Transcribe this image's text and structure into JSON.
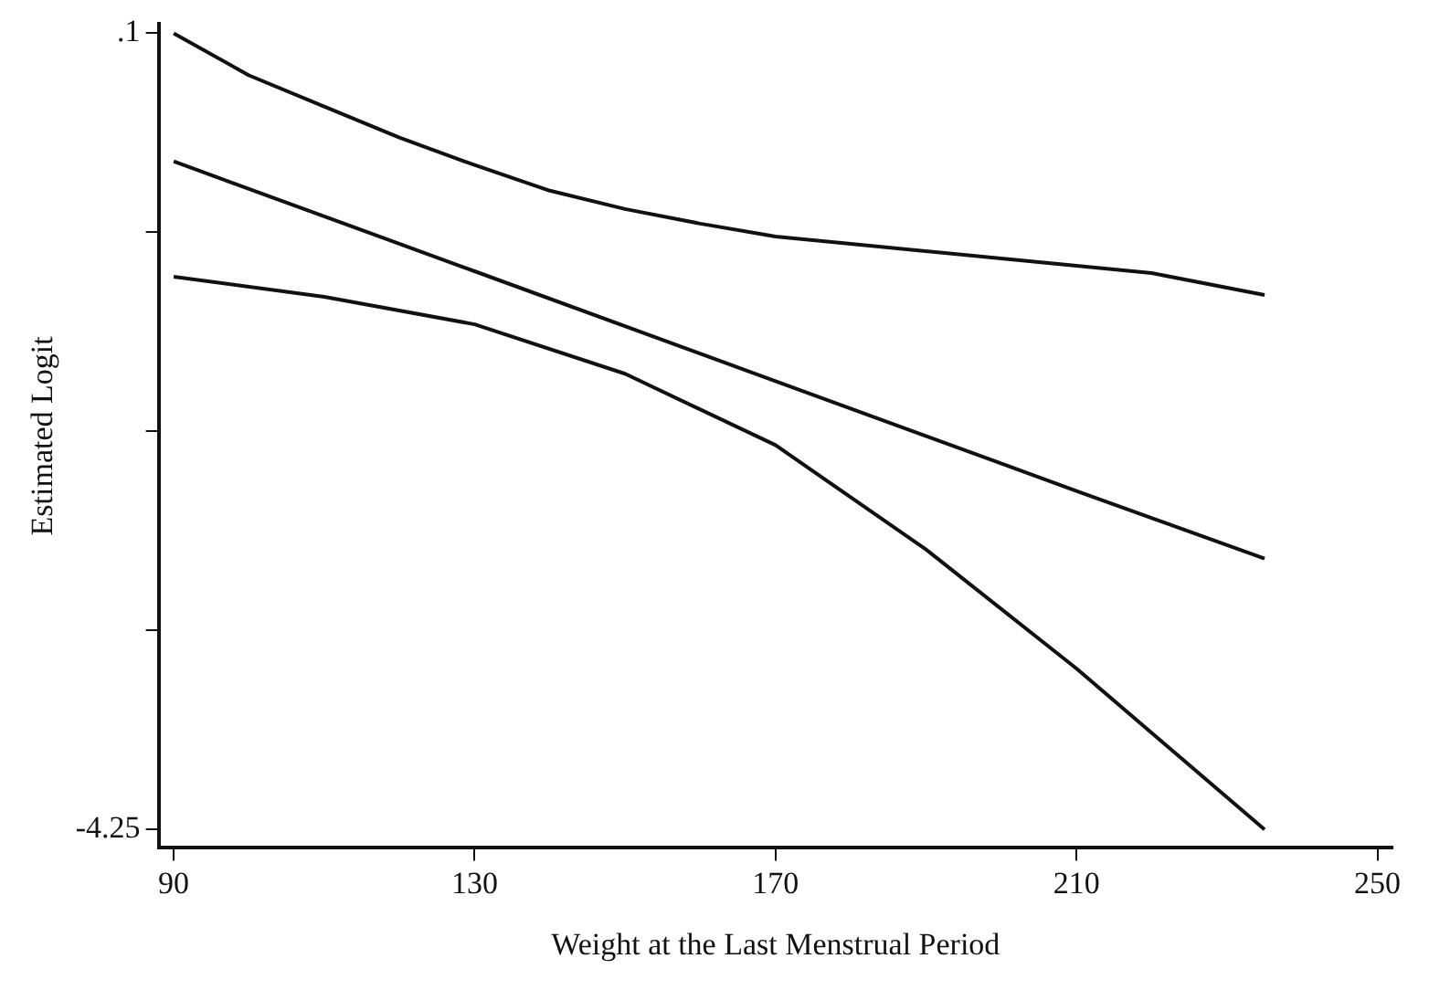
{
  "chart_data": {
    "type": "line",
    "xlabel": "Weight at the Last Menstrual Period",
    "ylabel": "Estimated Logit",
    "xlim": [
      88,
      252
    ],
    "xticks": [
      90,
      130,
      170,
      210,
      250
    ],
    "ylim": [
      -4.35,
      0.15
    ],
    "yticks": [
      {
        "value": 0.1,
        "label": ".1"
      },
      {
        "value": -0.9875,
        "label": null
      },
      {
        "value": -2.075,
        "label": null
      },
      {
        "value": -3.1625,
        "label": null
      },
      {
        "value": -4.25,
        "label": "-4.25"
      }
    ],
    "grid": false,
    "legend": false,
    "marker": "none",
    "line_style": "solid",
    "series": [
      {
        "color": "#111111",
        "x": [
          90,
          100,
          110,
          120,
          130,
          140,
          150,
          160,
          170,
          180,
          200,
          220,
          235
        ],
        "values": [
          0.1,
          -0.13,
          -0.3,
          -0.47,
          -0.62,
          -0.76,
          -0.86,
          -0.94,
          -1.01,
          -1.05,
          -1.13,
          -1.21,
          -1.33
        ]
      },
      {
        "color": "#111111",
        "x": [
          90,
          130,
          170,
          210,
          235
        ],
        "values": [
          -0.6,
          -1.2,
          -1.8,
          -2.4,
          -2.77
        ]
      },
      {
        "color": "#111111",
        "x": [
          90,
          110,
          130,
          150,
          170,
          190,
          210,
          235
        ],
        "values": [
          -1.23,
          -1.34,
          -1.49,
          -1.76,
          -2.15,
          -2.72,
          -3.37,
          -4.25
        ]
      }
    ]
  }
}
